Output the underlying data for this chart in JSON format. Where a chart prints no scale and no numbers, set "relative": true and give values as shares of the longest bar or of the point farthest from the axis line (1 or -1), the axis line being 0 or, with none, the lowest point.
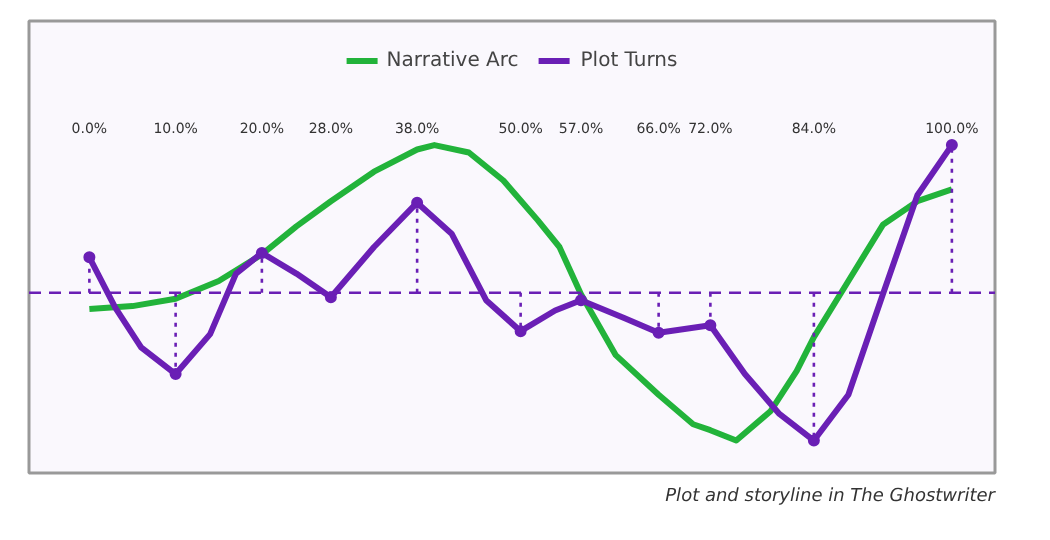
{
  "chart_data": {
    "type": "line",
    "relative": true,
    "legend": "top",
    "grid": false,
    "line_style": "solid",
    "marker": "none",
    "tick_labels": "x",
    "xlim": [
      -7,
      105
    ],
    "xticks": [
      {
        "value": 0,
        "label": "0.0%"
      },
      {
        "value": 10,
        "label": "10.0%"
      },
      {
        "value": 20,
        "label": "20.0%"
      },
      {
        "value": 28,
        "label": "28.0%"
      },
      {
        "value": 38,
        "label": "38.0%"
      },
      {
        "value": 50,
        "label": "50.0%"
      },
      {
        "value": 57,
        "label": "57.0%"
      },
      {
        "value": 66,
        "label": "66.0%"
      },
      {
        "value": 72,
        "label": "72.0%"
      },
      {
        "value": 84,
        "label": "84.0%"
      },
      {
        "value": 100,
        "label": "100.0%"
      }
    ],
    "series": [
      {
        "name": "Narrative Arc",
        "color": "#22b33a",
        "x": [
          0,
          5,
          10,
          15,
          20,
          24,
          28,
          33,
          38,
          40,
          44,
          48,
          52,
          54.5,
          57,
          61,
          66,
          70,
          72,
          75,
          79,
          82,
          84,
          88,
          92,
          96,
          100
        ],
        "values": [
          -0.11,
          -0.09,
          -0.04,
          0.08,
          0.26,
          0.45,
          0.62,
          0.82,
          0.97,
          1.0,
          0.95,
          0.76,
          0.49,
          0.31,
          -0.01,
          -0.42,
          -0.69,
          -0.89,
          -0.93,
          -1.0,
          -0.8,
          -0.53,
          -0.3,
          0.08,
          0.46,
          0.62,
          0.7
        ]
      },
      {
        "name": "Plot Turns",
        "color": "#6a1fb5",
        "x": [
          0,
          3,
          6,
          10,
          14,
          17,
          20,
          24,
          28,
          33,
          38,
          42,
          46,
          50,
          54,
          57,
          62,
          66,
          72,
          76,
          80,
          84,
          88,
          92,
          96,
          100
        ],
        "values": [
          0.24,
          -0.1,
          -0.37,
          -0.55,
          -0.28,
          0.13,
          0.27,
          0.13,
          -0.03,
          0.31,
          0.61,
          0.4,
          -0.05,
          -0.26,
          -0.12,
          -0.05,
          -0.17,
          -0.27,
          -0.22,
          -0.55,
          -0.82,
          -1.0,
          -0.69,
          -0.01,
          0.66,
          1.0
        ]
      },
      {
        "type": "lollipop",
        "color": "#6a1fb5",
        "line_style": "dotted",
        "marker": "circle",
        "x": [
          0,
          10,
          20,
          28,
          38,
          50,
          57,
          66,
          72,
          84,
          100
        ],
        "values": [
          0.24,
          -0.55,
          0.27,
          -0.03,
          0.61,
          -0.26,
          -0.05,
          -0.27,
          -0.22,
          -1.0,
          1.0
        ]
      }
    ],
    "ref_lines": [
      {
        "axis": "y",
        "value": 0,
        "color": "#6a1fb5",
        "line_style": "dashed"
      }
    ],
    "annotations": [
      "Plot and storyline in The Ghostwriter"
    ]
  }
}
